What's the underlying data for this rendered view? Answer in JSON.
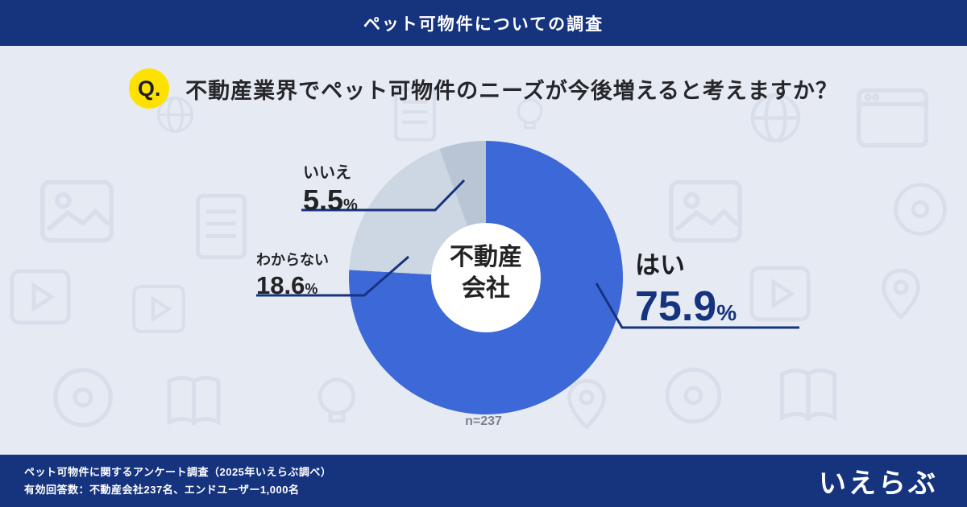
{
  "header": {
    "title": "ペット可物件についての調査"
  },
  "question": {
    "prefix": "Q.",
    "text": "不動産業界でペット可物件のニーズが今後増えると考えますか？"
  },
  "chart_data": {
    "type": "pie",
    "donut": true,
    "title": "不動産業界でペット可物件のニーズが今後増えると考えますか？",
    "categories": [
      "はい",
      "わからない",
      "いいえ"
    ],
    "values": [
      75.9,
      18.6,
      5.5
    ],
    "unit": "%",
    "colors": [
      "#3D68D8",
      "#CDD6E3",
      "#B9C5D5"
    ],
    "start_angle_deg": 0,
    "direction": "clockwise",
    "center_label_line1": "不動産",
    "center_label_line2": "会社",
    "sample_label": "n=237",
    "legend_position": "callouts"
  },
  "labels": {
    "yes": {
      "name": "はい",
      "value": "75.9",
      "unit": "%"
    },
    "unknown": {
      "name": "わからない",
      "value": "18.6",
      "unit": "%"
    },
    "no": {
      "name": "いいえ",
      "value": "5.5",
      "unit": "%"
    }
  },
  "footer": {
    "line1": "ペット可物件に関するアンケート調査（2025年いえらぶ調べ）",
    "line2": "有効回答数：不動産会社237名、エンドユーザー1,000名",
    "logo": "いえらぶ"
  },
  "colors": {
    "bar_navy": "#16337E",
    "pie_yes_blue": "#3D68D8",
    "pie_unknown_gray": "#CDD6E3",
    "pie_no_gray": "#B9C5D5",
    "question_badge_yellow": "#FFE100",
    "background": "#E6EBF3"
  }
}
